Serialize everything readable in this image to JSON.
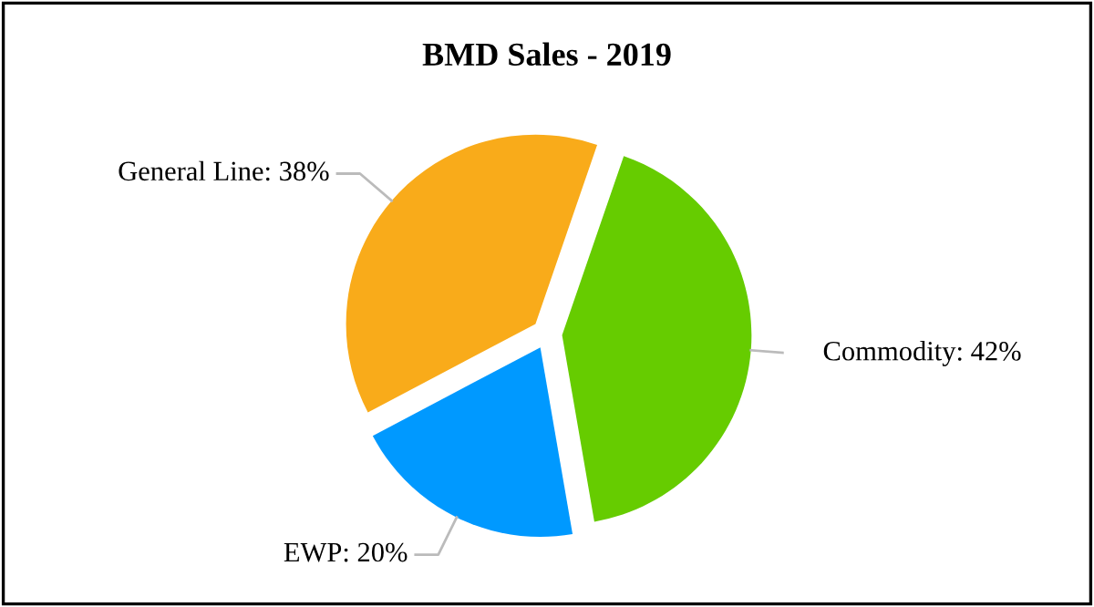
{
  "chart_data": {
    "type": "pie",
    "title": "BMD Sales - 2019",
    "categories": [
      "Commodity",
      "EWP",
      "General Line"
    ],
    "values": [
      42,
      20,
      38
    ],
    "value_labels": [
      ": 42%",
      ": 20%",
      ": 38%"
    ],
    "colors": [
      "#66cc00",
      "#0099ff",
      "#f9ab1a"
    ]
  }
}
